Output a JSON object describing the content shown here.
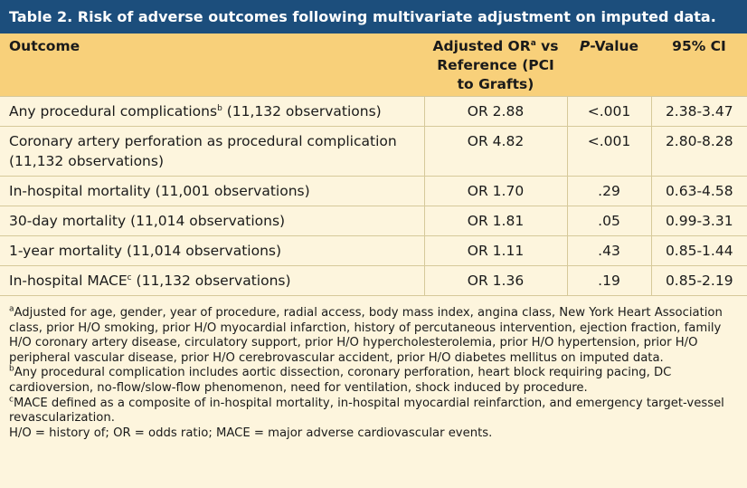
{
  "title": "Table 2. Risk of adverse outcomes following multivariate adjustment on imputed data.",
  "headers": {
    "outcome": "Outcome",
    "or_main": "Adjusted OR",
    "or_sup": "a",
    "or_rest": " vs Reference (PCI to Grafts)",
    "p_italic": "P",
    "p_rest": "-Value",
    "ci": "95% CI"
  },
  "rows": [
    {
      "outcome": "Any procedural complications",
      "sup": "b",
      "obs": " (11,132 observations)",
      "or": "OR 2.88",
      "p": "<.001",
      "ci": "2.38-3.47"
    },
    {
      "outcome": "Coronary artery perforation as procedural complication (11,132 observations)",
      "or": "OR 4.82",
      "p": "<.001",
      "ci": "2.80-8.28"
    },
    {
      "outcome": "In-hospital mortality (11,001 observations)",
      "or": "OR 1.70",
      "p": ".29",
      "ci": "0.63-4.58"
    },
    {
      "outcome": "30-day mortality (11,014 observations)",
      "or": "OR 1.81",
      "p": ".05",
      "ci": "0.99-3.31"
    },
    {
      "outcome": "1-year mortality (11,014 observations)",
      "or": "OR 1.11",
      "p": ".43",
      "ci": "0.85-1.44"
    },
    {
      "outcome": "In-hospital MACE",
      "sup": "c",
      "obs": " (11,132 observations)",
      "or": "OR 1.36",
      "p": ".19",
      "ci": "0.85-2.19"
    }
  ],
  "footnotes": {
    "a_mark": "a",
    "a": "Adjusted for age, gender, year of procedure, radial access, body mass index, angina class, New York Heart Association class, prior H/O smoking, prior H/O myocardial infarction, history of percutaneous intervention, ejection fraction, family H/O coronary artery disease, circulatory support, prior H/O hypercholesterolemia, prior H/O hypertension, prior H/O peripheral vascular disease, prior H/O cerebrovascular accident, prior H/O diabetes mellitus on imputed data.",
    "b_mark": "b",
    "b": "Any procedural complication includes aortic dissection, coronary perforation, heart block requiring pacing, DC cardioversion, no-flow/slow-flow phenomenon, need for ventilation, shock induced by procedure.",
    "c_mark": "c",
    "c": "MACE defined as a composite of in-hospital mortality, in-hospital myocardial reinfarction, and emergency target-vessel revascularization.",
    "abbrev": "H/O = history of; OR = odds ratio; MACE = major adverse cardiovascular events."
  },
  "colors": {
    "title_bg": "#1c4e7c",
    "header_bg": "#f8d07a",
    "body_bg": "#fdf5dd"
  }
}
